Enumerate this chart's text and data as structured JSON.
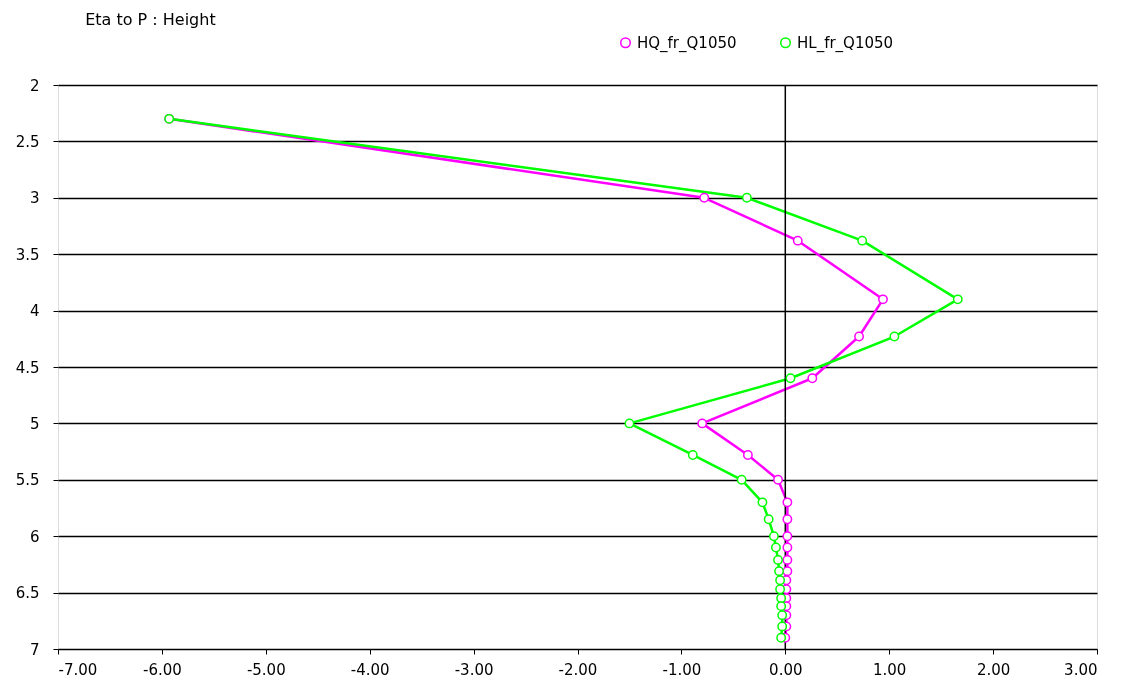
{
  "chart_data": {
    "type": "line",
    "title": "Eta to P : Height",
    "xlim": [
      -7,
      3
    ],
    "xticks": [
      {
        "value": -7,
        "label": "-7.00"
      },
      {
        "value": -6,
        "label": "-6.00"
      },
      {
        "value": -5,
        "label": "-5.00"
      },
      {
        "value": -4,
        "label": "-4.00"
      },
      {
        "value": -3,
        "label": "-3.00"
      },
      {
        "value": -2,
        "label": "-2.00"
      },
      {
        "value": -1,
        "label": "-1.00"
      },
      {
        "value": 0,
        "label": "0.00"
      },
      {
        "value": 1,
        "label": "1.00"
      },
      {
        "value": 2,
        "label": "2.00"
      },
      {
        "value": 3,
        "label": "3.00"
      }
    ],
    "ylim": [
      7,
      2
    ],
    "yticks": [
      2,
      2.5,
      3,
      3.5,
      4,
      4.5,
      5,
      5.5,
      6,
      6.5,
      7
    ],
    "grid": "y",
    "legend": "top right",
    "marker": "circle",
    "line_style": "solid",
    "ref_lines": [
      {
        "axis": "x",
        "value": 0,
        "color": "#000000"
      }
    ],
    "series": [
      {
        "name": "HQ_fr_Q1050",
        "color": "#ff00ff",
        "values": [
          2.3,
          3.0,
          3.38,
          3.9,
          4.23,
          4.6,
          5.0,
          5.28,
          5.5,
          5.7,
          5.85,
          6.0,
          6.1,
          6.21,
          6.31,
          6.39,
          6.47,
          6.55,
          6.62,
          6.7,
          6.8,
          6.9
        ],
        "x": [
          -5.93,
          -0.78,
          0.12,
          0.94,
          0.71,
          0.26,
          -0.8,
          -0.36,
          -0.07,
          0.02,
          0.02,
          0.02,
          0.02,
          0.02,
          0.02,
          0.01,
          0.01,
          0.01,
          0.01,
          0.01,
          0.01,
          0.0
        ]
      },
      {
        "name": "HL_fr_Q1050",
        "color": "#00ff00",
        "values": [
          2.3,
          3.0,
          3.38,
          3.9,
          4.23,
          4.6,
          5.0,
          5.28,
          5.5,
          5.7,
          5.85,
          6.0,
          6.1,
          6.21,
          6.31,
          6.39,
          6.47,
          6.55,
          6.62,
          6.7,
          6.8,
          6.9
        ],
        "x": [
          -5.93,
          -0.37,
          0.74,
          1.66,
          1.05,
          0.05,
          -1.5,
          -0.89,
          -0.42,
          -0.22,
          -0.16,
          -0.11,
          -0.09,
          -0.07,
          -0.06,
          -0.05,
          -0.05,
          -0.04,
          -0.04,
          -0.03,
          -0.03,
          -0.04
        ]
      }
    ]
  }
}
